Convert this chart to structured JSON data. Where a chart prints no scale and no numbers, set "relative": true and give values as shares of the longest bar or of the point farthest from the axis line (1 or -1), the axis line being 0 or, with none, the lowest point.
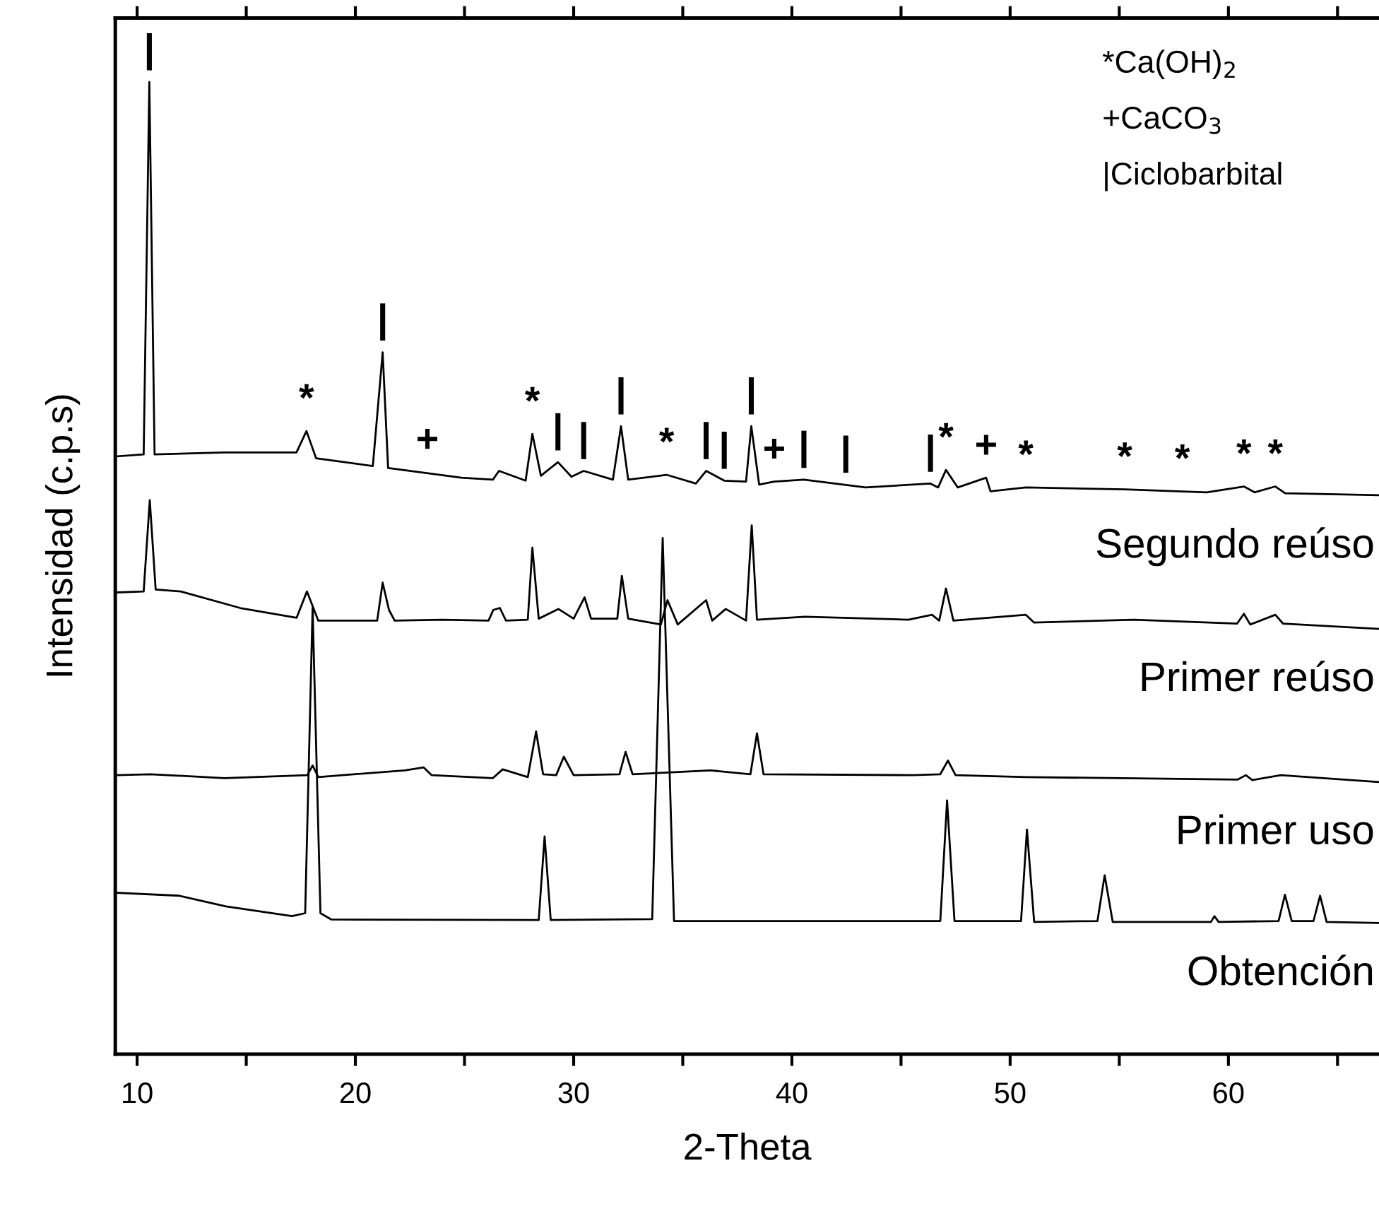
{
  "chart_data": {
    "type": "line",
    "relative": true,
    "xlabel": "2-Theta",
    "ylabel": "Intensidad (c.p.s)",
    "xlim": [
      9,
      66.9
    ],
    "xticks": [
      10,
      {
        "value": 15,
        "label": null
      },
      20,
      {
        "value": 25,
        "label": null
      },
      30,
      {
        "value": 35,
        "label": null
      },
      40,
      {
        "value": 45,
        "label": null
      },
      50,
      {
        "value": 55,
        "label": null
      },
      60,
      {
        "value": 65,
        "label": null
      }
    ],
    "grid": false,
    "legend": false,
    "marker": "none",
    "line_style": "solid",
    "series": [
      {
        "name": "Segundo reúso",
        "color": "#000000",
        "x": [
          9.1,
          10.3,
          10.56,
          10.8,
          14.0,
          17.3,
          17.76,
          18.2,
          20.8,
          21.25,
          21.5,
          24.86,
          26.3,
          26.58,
          27.8,
          28.11,
          28.5,
          29.28,
          29.9,
          30.46,
          31.8,
          32.17,
          32.5,
          34.26,
          35.6,
          36.07,
          36.9,
          37.9,
          38.14,
          38.5,
          39.19,
          40.55,
          43.38,
          46.35,
          46.7,
          47.06,
          47.6,
          48.9,
          49.1,
          50.72,
          55.25,
          59.0,
          60.71,
          61.2,
          62.15,
          62.6,
          66.86
        ],
        "values": [
          0.615,
          0.617,
          1.0,
          0.617,
          0.619,
          0.619,
          0.641,
          0.613,
          0.605,
          0.722,
          0.603,
          0.593,
          0.591,
          0.6,
          0.59,
          0.638,
          0.595,
          0.609,
          0.594,
          0.6,
          0.591,
          0.646,
          0.591,
          0.596,
          0.587,
          0.6,
          0.59,
          0.589,
          0.646,
          0.586,
          0.589,
          0.591,
          0.583,
          0.587,
          0.583,
          0.601,
          0.583,
          0.593,
          0.579,
          0.583,
          0.581,
          0.578,
          0.584,
          0.578,
          0.584,
          0.577,
          0.575
        ]
      },
      {
        "name": "Primer reúso",
        "color": "#000000",
        "x": [
          9.1,
          10.3,
          10.58,
          10.85,
          12.0,
          14.72,
          17.31,
          17.78,
          18.3,
          21.0,
          21.25,
          21.54,
          21.8,
          24.0,
          26.1,
          26.32,
          26.62,
          26.9,
          27.9,
          28.11,
          28.4,
          29.3,
          30.0,
          30.5,
          30.8,
          32.0,
          32.21,
          32.5,
          34.0,
          34.3,
          34.77,
          36.07,
          36.35,
          36.97,
          37.9,
          38.16,
          38.4,
          40.6,
          45.34,
          46.42,
          46.75,
          47.06,
          47.4,
          50.72,
          51.1,
          55.67,
          60.4,
          60.71,
          61.0,
          62.15,
          62.5,
          66.86
        ],
        "values": [
          0.475,
          0.476,
          0.57,
          0.478,
          0.476,
          0.459,
          0.449,
          0.476,
          0.446,
          0.446,
          0.485,
          0.457,
          0.446,
          0.447,
          0.446,
          0.457,
          0.459,
          0.446,
          0.447,
          0.521,
          0.448,
          0.458,
          0.448,
          0.47,
          0.448,
          0.448,
          0.492,
          0.448,
          0.442,
          0.467,
          0.442,
          0.467,
          0.446,
          0.458,
          0.446,
          0.544,
          0.447,
          0.45,
          0.447,
          0.452,
          0.446,
          0.479,
          0.446,
          0.452,
          0.444,
          0.447,
          0.443,
          0.453,
          0.442,
          0.452,
          0.443,
          0.4375
        ]
      },
      {
        "name": "Primer uso",
        "color": "#000000",
        "x": [
          9.1,
          10.6,
          14.0,
          17.8,
          18.04,
          18.3,
          22.27,
          23.13,
          23.5,
          26.3,
          26.75,
          27.9,
          28.28,
          28.6,
          29.2,
          29.55,
          30.0,
          32.1,
          32.38,
          32.7,
          36.26,
          38.1,
          38.4,
          38.7,
          45.55,
          46.8,
          47.15,
          47.5,
          50.72,
          60.43,
          60.8,
          61.1,
          62.4,
          66.86
        ],
        "values": [
          0.287,
          0.288,
          0.284,
          0.287,
          0.297,
          0.285,
          0.292,
          0.295,
          0.287,
          0.284,
          0.293,
          0.285,
          0.332,
          0.288,
          0.287,
          0.306,
          0.287,
          0.288,
          0.311,
          0.288,
          0.292,
          0.288,
          0.33,
          0.288,
          0.287,
          0.288,
          0.302,
          0.287,
          0.285,
          0.2825,
          0.287,
          0.282,
          0.287,
          0.28
        ]
      },
      {
        "name": "Obtención",
        "color": "#000000",
        "x": [
          9.1,
          11.92,
          14.07,
          17.1,
          17.7,
          18.04,
          18.4,
          18.9,
          28.4,
          28.67,
          28.95,
          33.6,
          34.08,
          34.6,
          46.8,
          47.11,
          47.45,
          50.5,
          50.77,
          51.1,
          54.0,
          54.33,
          54.7,
          59.2,
          59.36,
          59.55,
          62.3,
          62.59,
          62.9,
          63.9,
          64.2,
          64.5,
          66.86
        ],
        "values": [
          0.166,
          0.163,
          0.152,
          0.142,
          0.145,
          0.459,
          0.145,
          0.1385,
          0.138,
          0.224,
          0.138,
          0.139,
          0.531,
          0.137,
          0.137,
          0.261,
          0.137,
          0.137,
          0.231,
          0.136,
          0.137,
          0.184,
          0.136,
          0.136,
          0.142,
          0.136,
          0.137,
          0.164,
          0.137,
          0.137,
          0.163,
          0.136,
          0.135
        ]
      }
    ],
    "annotations": [
      "*Ca(OH)$_{2}$",
      "+CaCO$_{3}$",
      "|Ciclobarbital",
      {
        "text": "|",
        "x": 10.56,
        "y": 1.0
      },
      {
        "text": "*",
        "x": 17.76,
        "y": 0.641
      },
      {
        "text": "|",
        "x": 21.25,
        "y": 0.722
      },
      {
        "text": "+",
        "x": 23.3,
        "y": 0.599
      },
      {
        "text": "*",
        "x": 28.11,
        "y": 0.638
      },
      {
        "text": "|",
        "x": 29.28,
        "y": 0.609
      },
      {
        "text": "|",
        "x": 30.46,
        "y": 0.6
      },
      {
        "text": "|",
        "x": 32.17,
        "y": 0.646
      },
      {
        "text": "*",
        "x": 34.26,
        "y": 0.596
      },
      {
        "text": "|",
        "x": 36.07,
        "y": 0.6
      },
      {
        "text": "|",
        "x": 36.9,
        "y": 0.59
      },
      {
        "text": "|",
        "x": 38.14,
        "y": 0.646
      },
      {
        "text": "+",
        "x": 39.19,
        "y": 0.589
      },
      {
        "text": "|",
        "x": 40.55,
        "y": 0.591
      },
      {
        "text": "|",
        "x": 42.47,
        "y": 0.586
      },
      {
        "text": "|",
        "x": 46.35,
        "y": 0.587
      },
      {
        "text": "*",
        "x": 47.06,
        "y": 0.601
      },
      {
        "text": "+",
        "x": 48.9,
        "y": 0.593
      },
      {
        "text": "*",
        "x": 50.72,
        "y": 0.583
      },
      {
        "text": "*",
        "x": 55.25,
        "y": 0.581
      },
      {
        "text": "*",
        "x": 57.89,
        "y": 0.579
      },
      {
        "text": "*",
        "x": 60.71,
        "y": 0.584
      },
      {
        "text": "*",
        "x": 62.15,
        "y": 0.584
      }
    ]
  }
}
